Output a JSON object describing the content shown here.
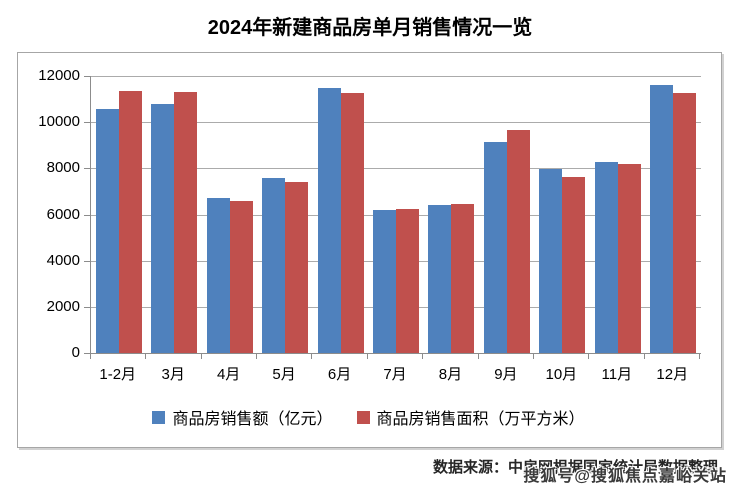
{
  "title": "2024年新建商品房单月销售情况一览",
  "chart_data": {
    "type": "bar",
    "categories": [
      "1-2月",
      "3月",
      "4月",
      "5月",
      "6月",
      "7月",
      "8月",
      "9月",
      "10月",
      "11月",
      "12月"
    ],
    "series": [
      {
        "name": "商品房销售额（亿元）",
        "color": "#4F81BD",
        "values": [
          10566,
          10789,
          6712,
          7598,
          11468,
          6197,
          6393,
          9157,
          7975,
          8270,
          11625
        ]
      },
      {
        "name": "商品房销售面积（万平方米）",
        "color": "#C0504D",
        "values": [
          11369,
          11299,
          6584,
          7390,
          11274,
          6233,
          6453,
          9682,
          7646,
          8188,
          11267
        ]
      }
    ],
    "title": "2024年新建商品房单月销售情况一览",
    "xlabel": "",
    "ylabel": "",
    "ylim": [
      0,
      12000
    ],
    "yticks": [
      0,
      2000,
      4000,
      6000,
      8000,
      10000,
      12000
    ],
    "grid": "horizontal",
    "legend_position": "bottom"
  },
  "footer": {
    "source_note": "数据来源：中房网根据国家统计局数据整理",
    "watermark": "搜狐号@搜狐焦点嘉峪关站"
  },
  "colors": {
    "series_sales_amount": "#4F81BD",
    "series_sales_area": "#C0504D",
    "gridline": "#ABABAB",
    "axis": "#8C8C8C",
    "panel_border": "#A6A6A6",
    "title_text": "#000000"
  }
}
